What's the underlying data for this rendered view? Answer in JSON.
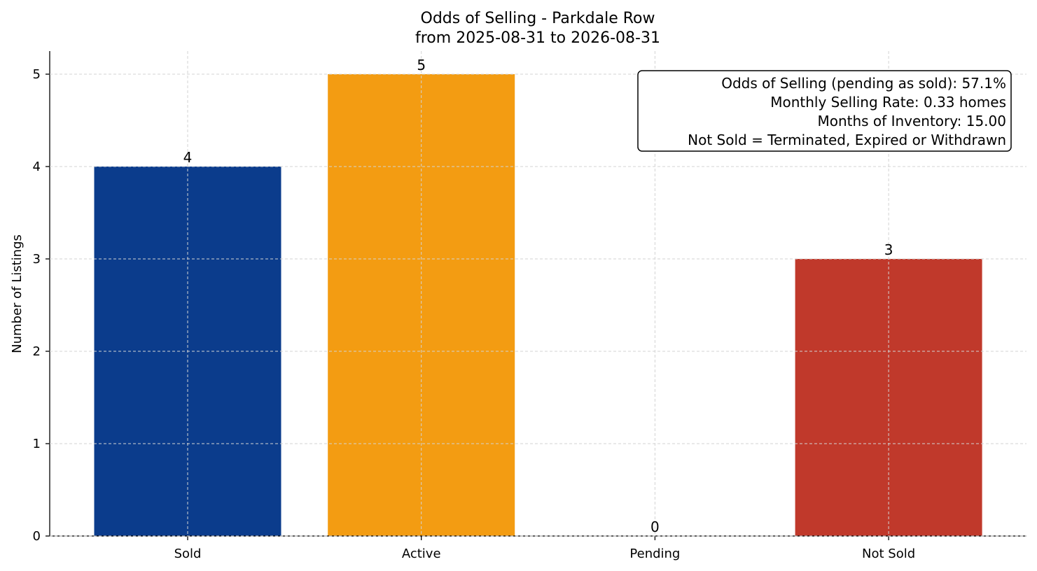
{
  "chart_data": {
    "type": "bar",
    "title": "Odds of Selling - Parkdale Row",
    "subtitle": "from 2025-08-31 to 2026-08-31",
    "xlabel": "",
    "ylabel": "Number of Listings",
    "categories": [
      "Sold",
      "Active",
      "Pending",
      "Not Sold"
    ],
    "values": [
      4,
      5,
      0,
      3
    ],
    "colors": [
      "#0b3c8c",
      "#f39c12",
      "#7f7f7f",
      "#c0392b"
    ],
    "ylim": [
      0,
      5.25
    ],
    "yticks": [
      0,
      1,
      2,
      3,
      4,
      5
    ],
    "grid": true,
    "info_box": {
      "placement": "top-right",
      "lines": [
        "Odds of Selling (pending as sold): 57.1%",
        "Monthly Selling Rate: 0.33 homes",
        "Months of Inventory: 15.00",
        "Not Sold = Terminated, Expired or Withdrawn"
      ]
    }
  }
}
